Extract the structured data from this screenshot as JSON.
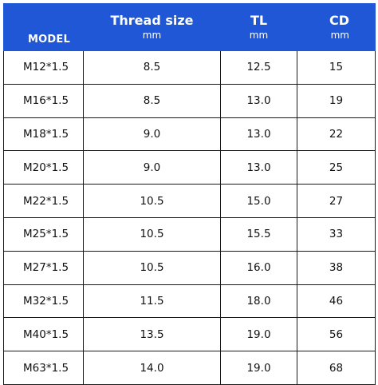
{
  "header": {
    "model": "MODEL",
    "thread_size": "Thread size",
    "thread_size_unit": "mm",
    "tl": "TL",
    "tl_unit": "mm",
    "cd": "CD",
    "cd_unit": "mm"
  },
  "rows": [
    {
      "model": "M12*1.5",
      "thread_size": "8.5",
      "tl": "12.5",
      "cd": "15"
    },
    {
      "model": "M16*1.5",
      "thread_size": "8.5",
      "tl": "13.0",
      "cd": "19"
    },
    {
      "model": "M18*1.5",
      "thread_size": "9.0",
      "tl": "13.0",
      "cd": "22"
    },
    {
      "model": "M20*1.5",
      "thread_size": "9.0",
      "tl": "13.0",
      "cd": "25"
    },
    {
      "model": "M22*1.5",
      "thread_size": "10.5",
      "tl": "15.0",
      "cd": "27"
    },
    {
      "model": "M25*1.5",
      "thread_size": "10.5",
      "tl": "15.5",
      "cd": "33"
    },
    {
      "model": "M27*1.5",
      "thread_size": "10.5",
      "tl": "16.0",
      "cd": "38"
    },
    {
      "model": "M32*1.5",
      "thread_size": "11.5",
      "tl": "18.0",
      "cd": "46"
    },
    {
      "model": "M40*1.5",
      "thread_size": "13.5",
      "tl": "19.0",
      "cd": "56"
    },
    {
      "model": "M63*1.5",
      "thread_size": "14.0",
      "tl": "19.0",
      "cd": "68"
    }
  ],
  "colors": {
    "header_background": "#1f57d6",
    "header_text": "#ffffff",
    "grid_line": "#1a1a1a"
  }
}
